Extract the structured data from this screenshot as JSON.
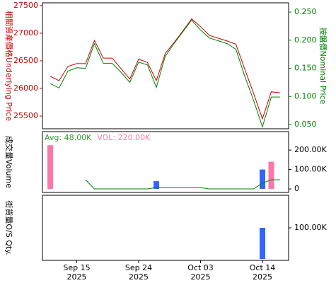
{
  "chart_data": [
    {
      "type": "line",
      "ylabel": "相關資產價格Underlying Price",
      "y2label": "按盤價Nominal Price",
      "ylim": [
        25270,
        27550
      ],
      "yticks": [
        25500,
        26000,
        26500,
        27000,
        27500
      ],
      "y2lim": [
        0.0425,
        0.2665
      ],
      "y2ticks": [
        {
          "value": 0.05,
          "label": "0.050"
        },
        {
          "value": 0.1,
          "label": "0.100"
        },
        {
          "value": 0.15,
          "label": "0.150"
        },
        {
          "value": 0.2,
          "label": "0.200"
        },
        {
          "value": 0.25,
          "label": "0.250"
        }
      ],
      "series": [
        {
          "color": "#cc0000",
          "values": [
            26220,
            26140,
            26400,
            26450,
            26450,
            26870,
            26550,
            26550,
            26360,
            26170,
            26530,
            26470,
            26140,
            26630,
            26830,
            27040,
            27260,
            27120,
            26960,
            26910,
            26860,
            26800,
            26350,
            25910,
            25450,
            25940,
            25920
          ]
        },
        {
          "color": "#008000",
          "axis": "y2",
          "values": [
            0.123,
            0.115,
            0.145,
            0.151,
            0.15,
            0.194,
            0.159,
            0.159,
            0.143,
            0.125,
            0.161,
            0.156,
            0.116,
            0.171,
            0.194,
            0.215,
            0.236,
            0.218,
            0.204,
            0.199,
            0.194,
            0.184,
            0.136,
            0.093,
            0.046,
            0.099,
            0.099
          ]
        }
      ]
    },
    {
      "type": "bar",
      "ylabel": "成交量Volume",
      "annotations": [
        {
          "text": "Avg: 48.00K",
          "color": "#339933"
        },
        {
          "text": "VOL: 220.00K",
          "color": "#ff77aa"
        }
      ],
      "ylim": [
        -18000,
        295000
      ],
      "yticks": [
        0,
        {
          "value": 100000,
          "label": "100.00K"
        },
        {
          "value": 200000,
          "label": "200.00K"
        }
      ],
      "values": [
        225000,
        null,
        null,
        null,
        null,
        null,
        null,
        null,
        null,
        null,
        null,
        null,
        40000,
        null,
        null,
        null,
        null,
        null,
        null,
        null,
        null,
        null,
        null,
        null,
        100000,
        140000,
        null
      ],
      "bar_colors": [
        "#ff77aa",
        null,
        null,
        null,
        null,
        null,
        null,
        null,
        null,
        null,
        null,
        null,
        "#3366ff",
        null,
        null,
        null,
        null,
        null,
        null,
        null,
        null,
        null,
        null,
        null,
        "#3366ff",
        "#ff77aa",
        null
      ],
      "avg_color": "#008000",
      "avg_values": [
        null,
        null,
        null,
        null,
        47000,
        0,
        0,
        0,
        0,
        0,
        0,
        0,
        7000,
        7000,
        7000,
        7000,
        7000,
        7000,
        0,
        0,
        0,
        0,
        0,
        0,
        30000,
        47000,
        47000
      ]
    },
    {
      "type": "bar",
      "ylabel": "街貨量O/S Qty.",
      "ylim": [
        -4500,
        204500
      ],
      "yticks": [
        {
          "value": 100000,
          "label": "100.00K"
        }
      ],
      "color": "#3366ff",
      "values": [
        null,
        null,
        null,
        null,
        null,
        null,
        null,
        null,
        null,
        null,
        null,
        null,
        null,
        null,
        null,
        null,
        null,
        null,
        null,
        null,
        null,
        null,
        null,
        null,
        100000,
        null,
        null
      ],
      "categories": [
        null,
        null,
        null,
        "Sep 15\n2025",
        null,
        null,
        null,
        null,
        null,
        null,
        "Sep 24\n2025",
        null,
        null,
        null,
        null,
        null,
        null,
        "Oct 03\n2025",
        null,
        null,
        null,
        null,
        null,
        null,
        "Oct 14\n2025",
        null,
        null
      ]
    }
  ]
}
